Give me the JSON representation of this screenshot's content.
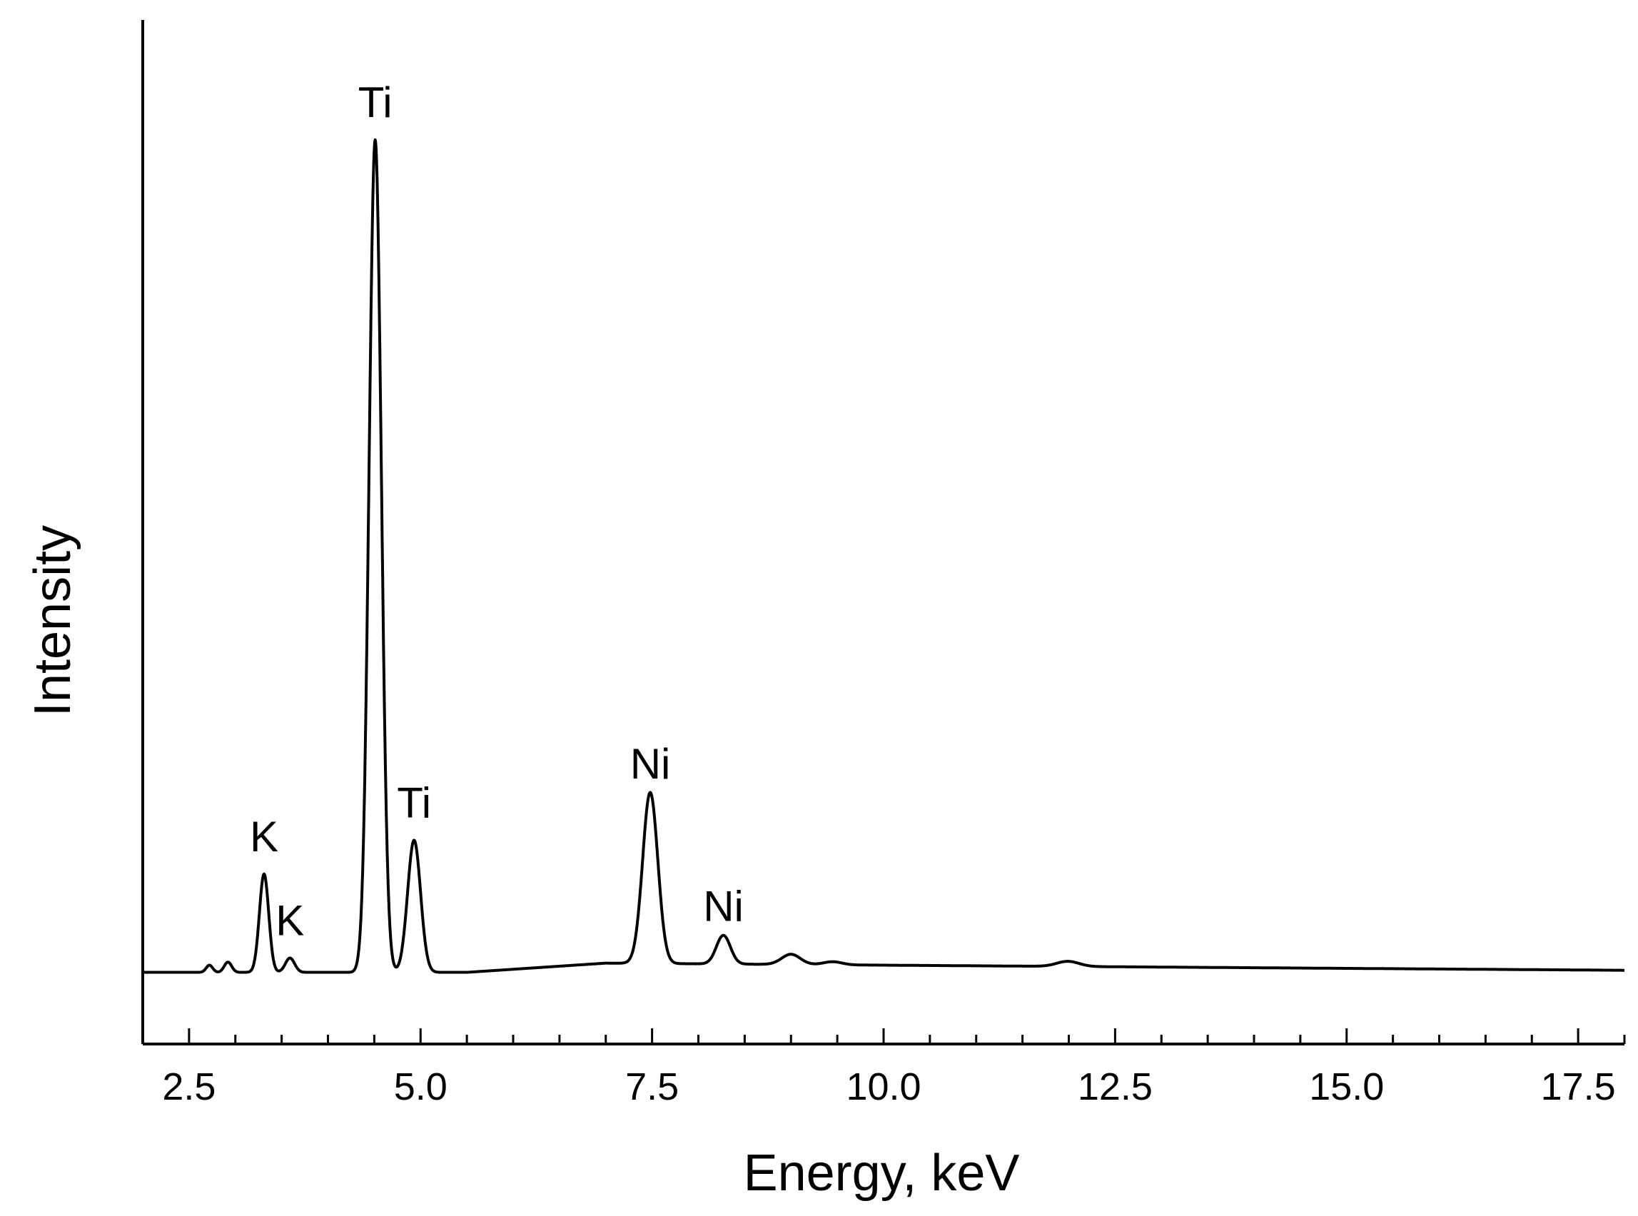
{
  "chart_data": {
    "type": "line",
    "xlabel": "Energy, keV",
    "ylabel": "Intensity",
    "xlim": [
      2.0,
      18.0
    ],
    "ylim": [
      0,
      100
    ],
    "xticks_major": [
      2.5,
      5.0,
      7.5,
      10.0,
      12.5,
      15.0,
      17.5
    ],
    "xtick_labels": [
      "2.5",
      "5.0",
      "7.5",
      "10.0",
      "12.5",
      "15.0",
      "17.5"
    ],
    "xticks_minor_step": 0.5,
    "yticks": [],
    "grid": false,
    "legend": "none",
    "line_color": "#000000",
    "baseline": 7.0,
    "peaks": [
      {
        "x": 2.72,
        "height": 0.7,
        "width": 0.035
      },
      {
        "x": 2.92,
        "height": 1.0,
        "width": 0.04
      },
      {
        "x": 3.31,
        "height": 9.6,
        "width": 0.05
      },
      {
        "x": 3.59,
        "height": 1.4,
        "width": 0.05
      },
      {
        "x": 4.51,
        "height": 81.3,
        "width": 0.066
      },
      {
        "x": 4.93,
        "height": 12.9,
        "width": 0.07
      },
      {
        "x": 7.48,
        "height": 16.7,
        "width": 0.082
      },
      {
        "x": 8.27,
        "height": 2.8,
        "width": 0.075
      },
      {
        "x": 9.0,
        "height": 1.0,
        "width": 0.1
      },
      {
        "x": 9.45,
        "height": 0.3,
        "width": 0.1
      },
      {
        "x": 11.99,
        "height": 0.5,
        "width": 0.12
      }
    ],
    "annotations": [
      {
        "text": "K",
        "x": 3.31,
        "y": 9.6
      },
      {
        "text": "K",
        "x": 3.59,
        "y": 1.4
      },
      {
        "text": "Ti",
        "x": 4.51,
        "y": 81.3
      },
      {
        "text": "Ti",
        "x": 4.93,
        "y": 12.9
      },
      {
        "text": "Ni",
        "x": 7.48,
        "y": 16.7
      },
      {
        "text": "Ni",
        "x": 8.27,
        "y": 2.8
      }
    ]
  }
}
